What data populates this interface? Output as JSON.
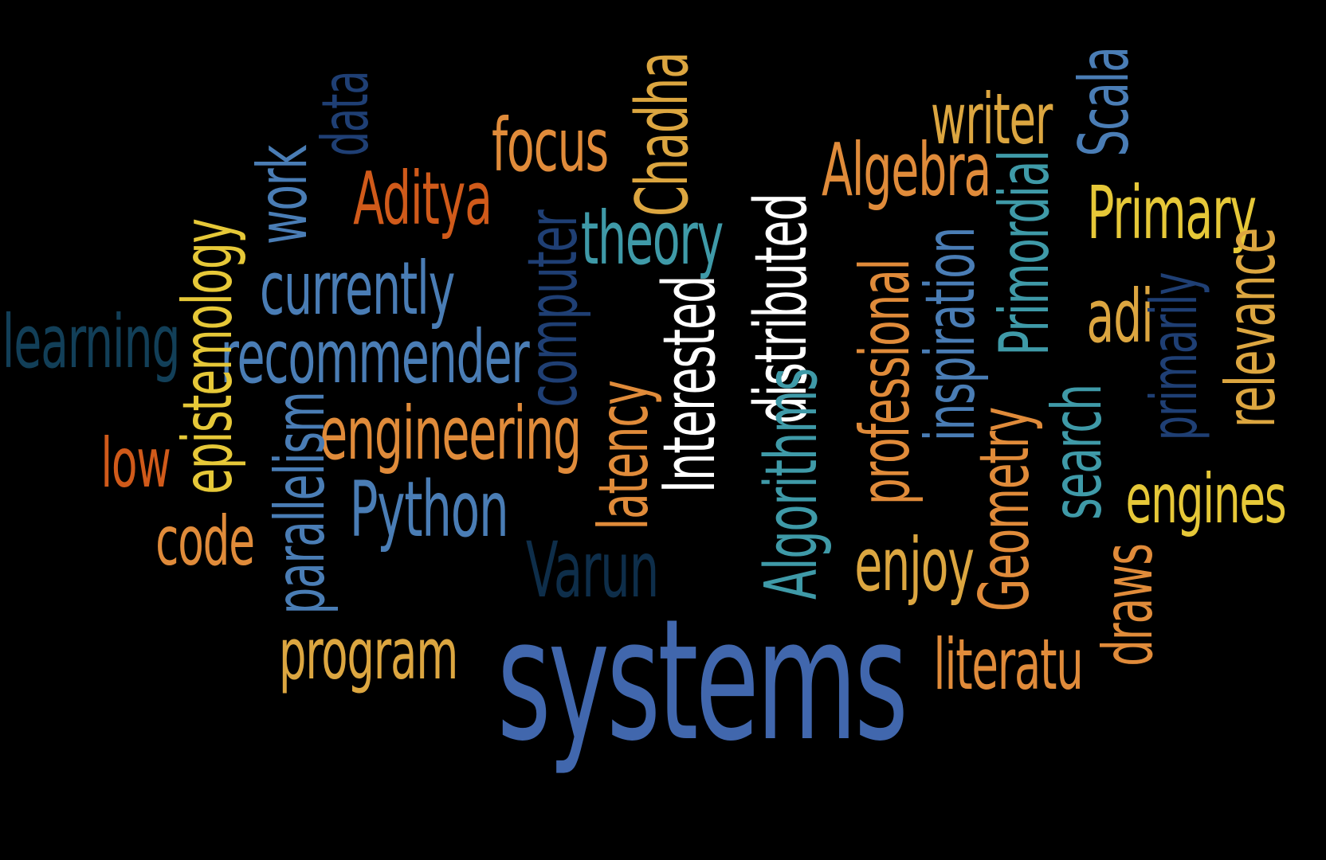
{
  "palette": {
    "background": "#000000",
    "royal_blue": "#4167ad",
    "steel_blue": "#4a7db5",
    "light_blue": "#5a8ec6",
    "navy": "#1f3f74",
    "dark_navy": "#0e2e4a",
    "dark_teal": "#123f58",
    "teal": "#3f9aa8",
    "orange": "#e08b3a",
    "dark_orange": "#d05a1a",
    "gold": "#dca640",
    "yellow": "#e6c838",
    "white": "#ffffff"
  },
  "words": {
    "systems": {
      "text": "systems",
      "color": "#4167ad"
    },
    "program": {
      "text": "program",
      "color": "#dca640"
    },
    "literatu": {
      "text": "literatu",
      "color": "#e08b3a"
    },
    "varun": {
      "text": "Varun",
      "color": "#0e2e4a"
    },
    "code": {
      "text": "code",
      "color": "#e08b3a"
    },
    "python": {
      "text": "Python",
      "color": "#4a7db5"
    },
    "enjoy": {
      "text": "enjoy",
      "color": "#dca640"
    },
    "engines": {
      "text": "engines",
      "color": "#e6c838"
    },
    "engineering": {
      "text": "engineering",
      "color": "#e08b3a"
    },
    "low": {
      "text": "low",
      "color": "#d05a1a"
    },
    "recommender": {
      "text": "recommender",
      "color": "#4a7db5"
    },
    "learning": {
      "text": "learning",
      "color": "#123f58"
    },
    "currently": {
      "text": "currently",
      "color": "#4a7db5"
    },
    "aditya": {
      "text": "Aditya",
      "color": "#d05a1a"
    },
    "focus": {
      "text": "focus",
      "color": "#e08b3a"
    },
    "theory": {
      "text": "theory",
      "color": "#3f9aa8"
    },
    "writer": {
      "text": "writer",
      "color": "#dca640"
    },
    "algebra": {
      "text": "Algebra",
      "color": "#e08b3a"
    },
    "primary": {
      "text": "Primary",
      "color": "#e6c838"
    },
    "adi": {
      "text": "adi",
      "color": "#dca640"
    },
    "data": {
      "text": "data",
      "color": "#1f3f74"
    },
    "work": {
      "text": "work",
      "color": "#4a7db5"
    },
    "epistemology": {
      "text": "epistemology",
      "color": "#e6c838"
    },
    "parallelism": {
      "text": "parallelism",
      "color": "#4a7db5"
    },
    "computer": {
      "text": "computer",
      "color": "#1f3f74"
    },
    "chadha": {
      "text": "Chadha",
      "color": "#dca640"
    },
    "latency": {
      "text": "latency",
      "color": "#e08b3a"
    },
    "interested": {
      "text": "Interested",
      "color": "#ffffff"
    },
    "distributed": {
      "text": "distributed",
      "color": "#ffffff"
    },
    "algorithms": {
      "text": "Algorithms",
      "color": "#3f9aa8"
    },
    "professional": {
      "text": "professional",
      "color": "#e08b3a"
    },
    "inspiration": {
      "text": "inspiration",
      "color": "#4a7db5"
    },
    "primordial": {
      "text": "Primordial",
      "color": "#3f9aa8"
    },
    "scala": {
      "text": "Scala",
      "color": "#4a7db5"
    },
    "geometry": {
      "text": "Geometry",
      "color": "#e08b3a"
    },
    "search": {
      "text": "search",
      "color": "#3f9aa8"
    },
    "primarily": {
      "text": "primarily",
      "color": "#1f3f74"
    },
    "relevance": {
      "text": "relevance",
      "color": "#dca640"
    },
    "draws": {
      "text": "draws",
      "color": "#e08b3a"
    }
  }
}
